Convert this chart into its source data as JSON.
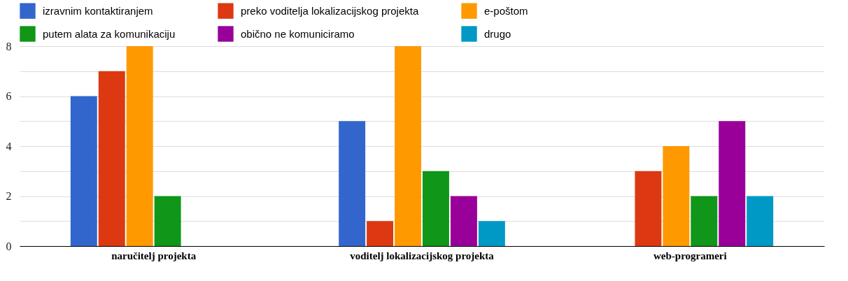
{
  "chart_data": {
    "type": "bar",
    "categories": [
      "naručitelj projekta",
      "voditelj lokalizacijskog projekta",
      "web-programeri"
    ],
    "series": [
      {
        "name": "izravnim kontaktiranjem",
        "color": "#3366cc",
        "values": [
          6,
          5,
          null
        ]
      },
      {
        "name": "preko voditelja lokalizacijskog projekta",
        "color": "#dc3912",
        "values": [
          7,
          1,
          3
        ]
      },
      {
        "name": "e-poštom",
        "color": "#ff9900",
        "values": [
          8,
          8,
          4
        ]
      },
      {
        "name": "putem alata za komunikaciju",
        "color": "#109618",
        "values": [
          2,
          3,
          2
        ]
      },
      {
        "name": "obično ne komuniciramo",
        "color": "#990099",
        "values": [
          null,
          2,
          5
        ]
      },
      {
        "name": "drugo",
        "color": "#0099c6",
        "values": [
          null,
          1,
          2
        ]
      }
    ],
    "ylim": [
      0,
      8
    ],
    "yticks": [
      0,
      {
        "value": 1,
        "label": null
      },
      2,
      {
        "value": 3,
        "label": null
      },
      4,
      {
        "value": 5,
        "label": null
      },
      6,
      {
        "value": 7,
        "label": null
      },
      8
    ],
    "grid": true,
    "legend": "top"
  }
}
